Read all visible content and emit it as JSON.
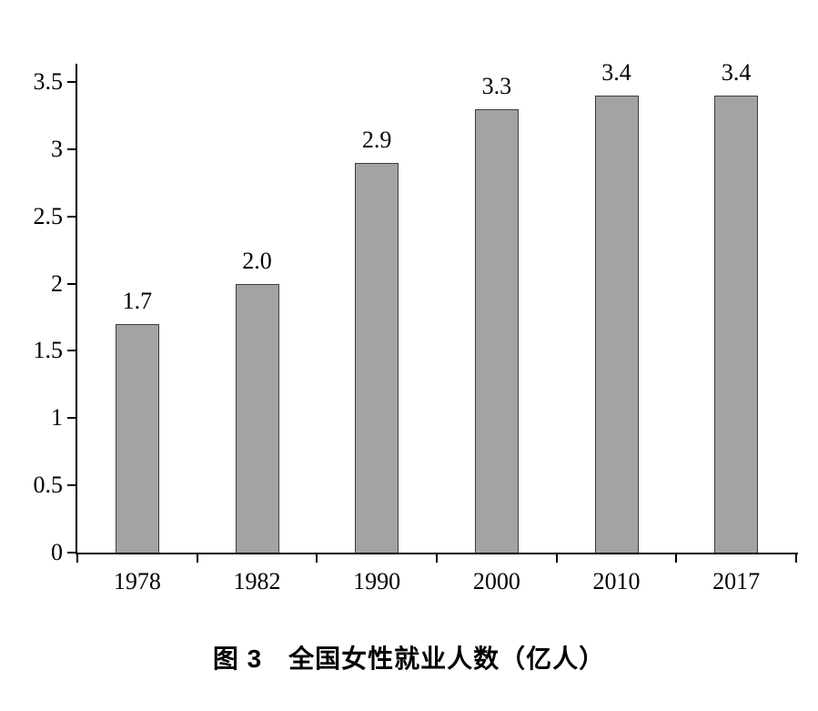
{
  "chart_data": {
    "type": "bar",
    "title": "图 3　全国女性就业人数（亿人）",
    "categories": [
      "1978",
      "1982",
      "1990",
      "2000",
      "2010",
      "2017"
    ],
    "values": [
      1.7,
      2.0,
      2.9,
      3.3,
      3.4,
      3.4
    ],
    "value_labels": [
      "1.7",
      "2.0",
      "2.9",
      "3.3",
      "3.4",
      "3.4"
    ],
    "xlabel": "",
    "ylabel": "",
    "ylim": [
      0,
      3.5
    ],
    "yticks": [
      0,
      0.5,
      1,
      1.5,
      2,
      2.5,
      3,
      3.5
    ],
    "ytick_labels": [
      "0",
      "0.5",
      "1",
      "1.5",
      "2",
      "2.5",
      "3",
      "3.5"
    ],
    "grid": false,
    "legend": "none",
    "data_label_position": "above-bars",
    "bar_color": "#a3a3a3",
    "bar_border_color": "#3c3c3c",
    "axis_color": "#000000",
    "text_color": "#000000",
    "background_color": "#ffffff"
  }
}
